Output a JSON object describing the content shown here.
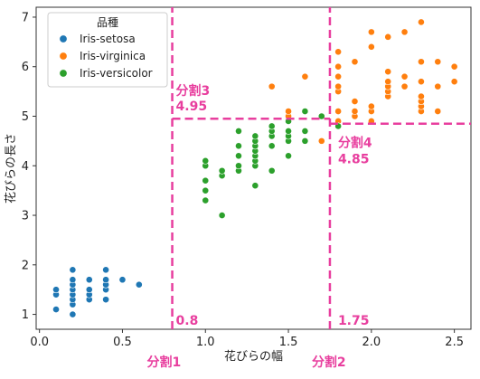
{
  "chart_data": {
    "type": "scatter",
    "xlabel": "花びらの幅",
    "ylabel": "花びらの長さ",
    "xlim": [
      -0.02,
      2.6
    ],
    "ylim": [
      0.7,
      7.2
    ],
    "xticks": [
      "0.0",
      "0.5",
      "1.0",
      "1.5",
      "2.0",
      "2.5"
    ],
    "yticks": [
      "1",
      "2",
      "3",
      "4",
      "5",
      "6",
      "7"
    ],
    "legend": {
      "title": "品種",
      "placement": "top-left"
    },
    "series": [
      {
        "name": "Iris-setosa",
        "color": "#1f77b4",
        "points": [
          [
            0.1,
            1.1
          ],
          [
            0.1,
            1.4
          ],
          [
            0.1,
            1.5
          ],
          [
            0.2,
            1.0
          ],
          [
            0.2,
            1.2
          ],
          [
            0.2,
            1.3
          ],
          [
            0.2,
            1.4
          ],
          [
            0.2,
            1.5
          ],
          [
            0.2,
            1.6
          ],
          [
            0.2,
            1.7
          ],
          [
            0.2,
            1.9
          ],
          [
            0.3,
            1.3
          ],
          [
            0.3,
            1.4
          ],
          [
            0.3,
            1.5
          ],
          [
            0.3,
            1.7
          ],
          [
            0.4,
            1.3
          ],
          [
            0.4,
            1.5
          ],
          [
            0.4,
            1.6
          ],
          [
            0.4,
            1.7
          ],
          [
            0.4,
            1.9
          ],
          [
            0.5,
            1.7
          ],
          [
            0.6,
            1.6
          ]
        ]
      },
      {
        "name": "Iris-virginica",
        "color": "#ff7f0e",
        "points": [
          [
            1.4,
            5.6
          ],
          [
            1.5,
            5.0
          ],
          [
            1.5,
            5.1
          ],
          [
            1.6,
            5.8
          ],
          [
            1.7,
            4.5
          ],
          [
            1.8,
            4.8
          ],
          [
            1.8,
            4.9
          ],
          [
            1.8,
            5.1
          ],
          [
            1.8,
            5.5
          ],
          [
            1.8,
            5.6
          ],
          [
            1.8,
            5.8
          ],
          [
            1.8,
            6.0
          ],
          [
            1.8,
            6.3
          ],
          [
            1.9,
            5.0
          ],
          [
            1.9,
            5.1
          ],
          [
            1.9,
            5.3
          ],
          [
            1.9,
            6.1
          ],
          [
            2.0,
            4.9
          ],
          [
            2.0,
            5.1
          ],
          [
            2.0,
            5.2
          ],
          [
            2.0,
            6.4
          ],
          [
            2.0,
            6.7
          ],
          [
            2.1,
            5.4
          ],
          [
            2.1,
            5.5
          ],
          [
            2.1,
            5.6
          ],
          [
            2.1,
            5.7
          ],
          [
            2.1,
            5.9
          ],
          [
            2.1,
            6.6
          ],
          [
            2.2,
            5.6
          ],
          [
            2.2,
            5.8
          ],
          [
            2.2,
            6.7
          ],
          [
            2.3,
            5.1
          ],
          [
            2.3,
            5.2
          ],
          [
            2.3,
            5.3
          ],
          [
            2.3,
            5.4
          ],
          [
            2.3,
            5.7
          ],
          [
            2.3,
            6.1
          ],
          [
            2.3,
            6.9
          ],
          [
            2.4,
            5.1
          ],
          [
            2.4,
            5.6
          ],
          [
            2.4,
            6.1
          ],
          [
            2.5,
            5.7
          ],
          [
            2.5,
            6.0
          ]
        ]
      },
      {
        "name": "Iris-versicolor",
        "color": "#2ca02c",
        "points": [
          [
            1.0,
            3.3
          ],
          [
            1.0,
            3.5
          ],
          [
            1.0,
            3.7
          ],
          [
            1.0,
            4.0
          ],
          [
            1.0,
            4.1
          ],
          [
            1.1,
            3.0
          ],
          [
            1.1,
            3.8
          ],
          [
            1.1,
            3.9
          ],
          [
            1.2,
            3.9
          ],
          [
            1.2,
            4.0
          ],
          [
            1.2,
            4.2
          ],
          [
            1.2,
            4.4
          ],
          [
            1.2,
            4.7
          ],
          [
            1.3,
            3.6
          ],
          [
            1.3,
            4.0
          ],
          [
            1.3,
            4.1
          ],
          [
            1.3,
            4.2
          ],
          [
            1.3,
            4.3
          ],
          [
            1.3,
            4.4
          ],
          [
            1.3,
            4.5
          ],
          [
            1.3,
            4.6
          ],
          [
            1.4,
            3.9
          ],
          [
            1.4,
            4.4
          ],
          [
            1.4,
            4.6
          ],
          [
            1.4,
            4.7
          ],
          [
            1.4,
            4.8
          ],
          [
            1.5,
            4.2
          ],
          [
            1.5,
            4.5
          ],
          [
            1.5,
            4.6
          ],
          [
            1.5,
            4.7
          ],
          [
            1.5,
            4.9
          ],
          [
            1.6,
            4.5
          ],
          [
            1.6,
            4.7
          ],
          [
            1.6,
            5.1
          ],
          [
            1.7,
            5.0
          ],
          [
            1.8,
            4.8
          ]
        ]
      }
    ],
    "splits": [
      {
        "axis": "x",
        "value": 0.8,
        "name": "分割1",
        "value_label": "0.8",
        "y_from": 0.7,
        "y_to": 7.2
      },
      {
        "axis": "x",
        "value": 1.75,
        "name": "分割2",
        "value_label": "1.75",
        "y_from": 0.7,
        "y_to": 7.2
      },
      {
        "axis": "y",
        "value": 4.95,
        "name": "分割3",
        "value_label": "4.95",
        "x_from": 0.8,
        "x_to": 1.75
      },
      {
        "axis": "y",
        "value": 4.85,
        "name": "分割4",
        "value_label": "4.85",
        "x_from": 1.75,
        "x_to": 2.6
      }
    ],
    "split_color": "#e83e9e"
  }
}
